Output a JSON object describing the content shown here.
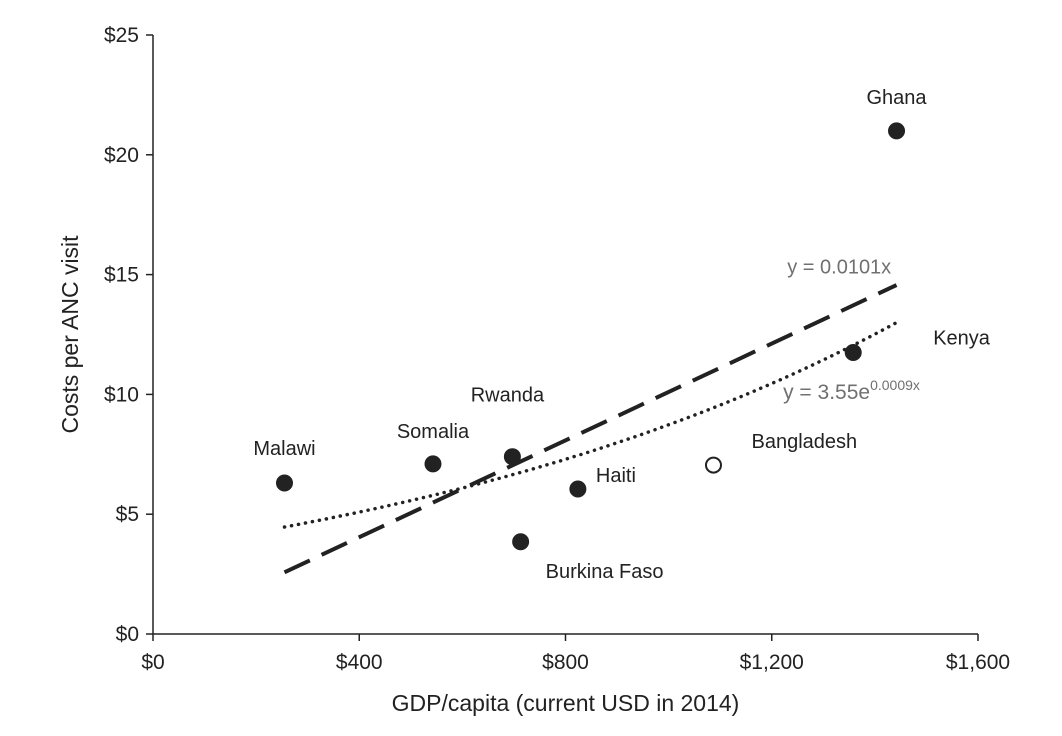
{
  "chart_data": {
    "type": "scatter",
    "xlabel": "GDP/capita (current USD in 2014)",
    "ylabel": "Costs per ANC visit",
    "xlim": [
      0,
      1600
    ],
    "ylim": [
      0,
      25
    ],
    "x_ticks": [
      0,
      400,
      800,
      1200,
      1600
    ],
    "x_tick_labels": [
      "$0",
      "$400",
      "$800",
      "$1,200",
      "$1,600"
    ],
    "y_ticks": [
      0,
      5,
      10,
      15,
      20,
      25
    ],
    "y_tick_labels": [
      "$0",
      "$5",
      "$10",
      "$15",
      "$20",
      "$25"
    ],
    "grid": false,
    "legend": "none",
    "points": [
      {
        "label": "Malawi",
        "x": 255,
        "y": 6.3,
        "filled": true
      },
      {
        "label": "Somalia",
        "x": 543,
        "y": 7.1,
        "filled": true
      },
      {
        "label": "Rwanda",
        "x": 697,
        "y": 7.4,
        "filled": true
      },
      {
        "label": "Burkina Faso",
        "x": 713,
        "y": 3.85,
        "filled": true
      },
      {
        "label": "Haiti",
        "x": 824,
        "y": 6.05,
        "filled": true
      },
      {
        "label": "Bangladesh",
        "x": 1087,
        "y": 7.05,
        "filled": false
      },
      {
        "label": "Kenya",
        "x": 1358,
        "y": 11.75,
        "filled": true
      },
      {
        "label": "Ghana",
        "x": 1442,
        "y": 21.0,
        "filled": true
      }
    ],
    "trendlines": [
      {
        "type": "linear",
        "equation": "y = 0.0101x",
        "slope": 0.0101,
        "x_range": [
          255,
          1442
        ],
        "style": "dashed"
      },
      {
        "type": "exponential",
        "equation": "y = 3.55e",
        "exponent": "0.0009x",
        "a": 3.55,
        "b": 0.0009,
        "x_range": [
          255,
          1442
        ],
        "style": "dotted"
      }
    ],
    "colors": {
      "points": "#222222",
      "axes": "#222222",
      "trendlines": "#222222",
      "equations": "#707070"
    }
  }
}
